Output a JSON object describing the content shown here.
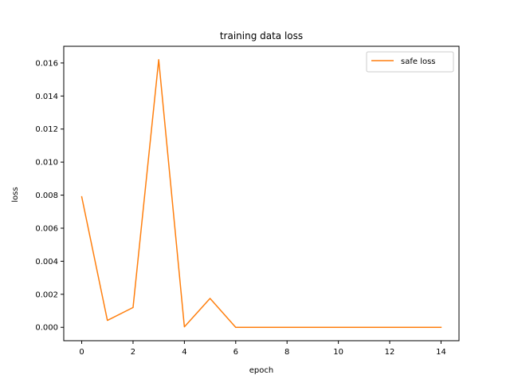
{
  "chart_data": {
    "type": "line",
    "title": "training data loss",
    "xlabel": "epoch",
    "ylabel": "loss",
    "xlim": [
      -0.7,
      14.7
    ],
    "ylim": [
      -0.00081,
      0.01701
    ],
    "xticks": [
      0,
      2,
      4,
      6,
      8,
      10,
      12,
      14
    ],
    "xtick_labels": [
      "0",
      "2",
      "4",
      "6",
      "8",
      "10",
      "12",
      "14"
    ],
    "yticks": [
      0.0,
      0.002,
      0.004,
      0.006,
      0.008,
      0.01,
      0.012,
      0.014,
      0.016
    ],
    "ytick_labels": [
      "0.000",
      "0.002",
      "0.004",
      "0.006",
      "0.008",
      "0.010",
      "0.012",
      "0.014",
      "0.016"
    ],
    "grid": false,
    "legend_position": "upper right",
    "x": [
      0,
      1,
      2,
      3,
      4,
      5,
      6,
      7,
      8,
      9,
      10,
      11,
      12,
      13,
      14
    ],
    "series": [
      {
        "name": "safe loss",
        "color": "#ff7f0e",
        "values": [
          0.0079,
          0.00042,
          0.0012,
          0.0162,
          3e-05,
          0.00175,
          0.0,
          0.0,
          0.0,
          0.0,
          0.0,
          0.0,
          0.0,
          0.0,
          0.0
        ]
      }
    ]
  }
}
